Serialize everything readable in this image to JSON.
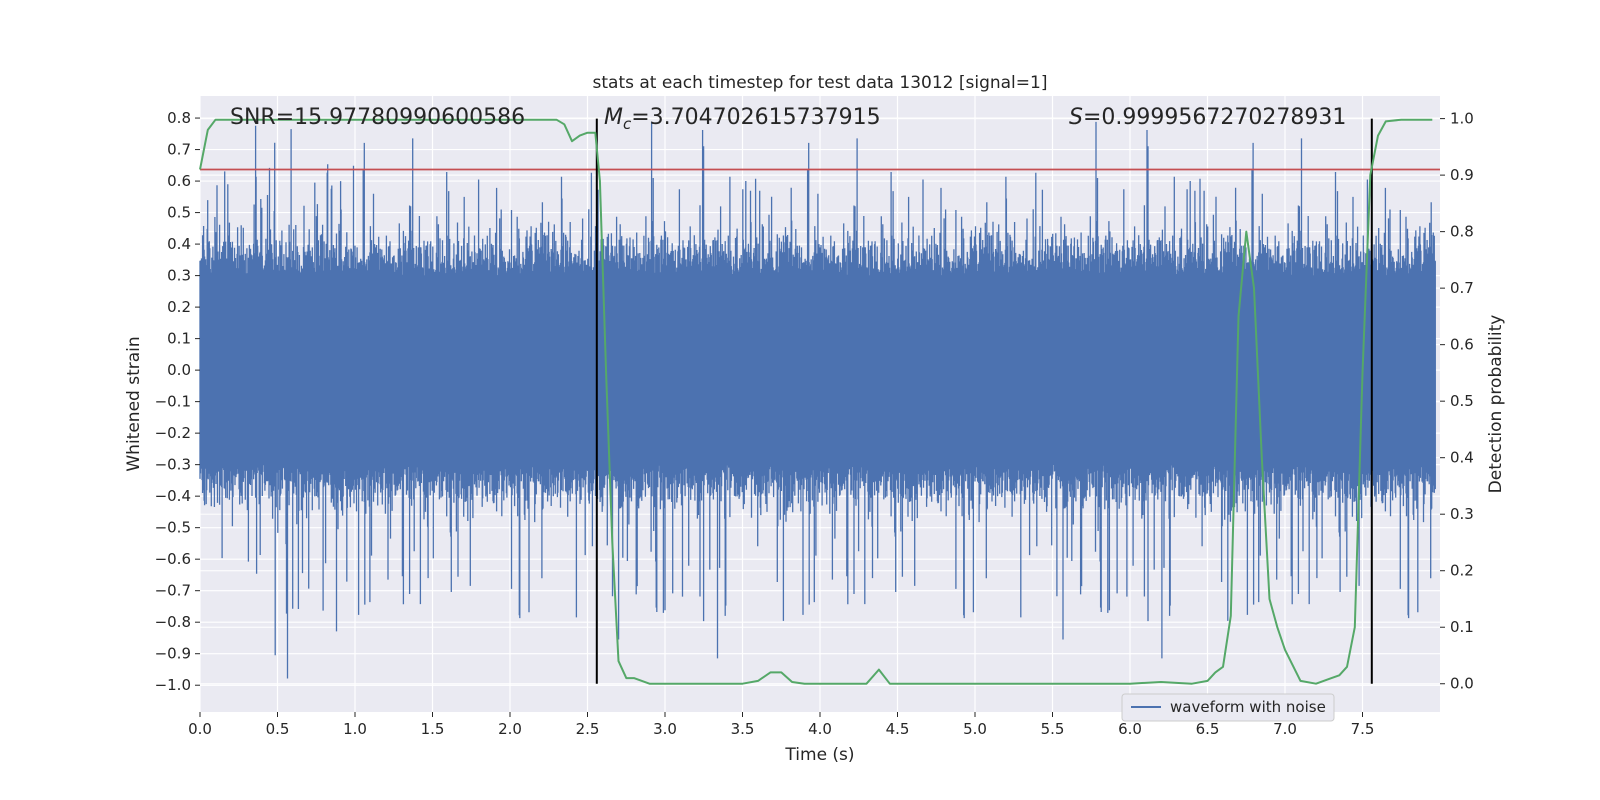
{
  "chart_data": {
    "type": "line",
    "title": "stats at each timestep for test data 13012 [signal=1]",
    "xlabel": "Time (s)",
    "ylabel": "Whitened strain",
    "y2label": "Detection probability",
    "xlim": [
      0.0,
      8.0
    ],
    "ylim": [
      -1.085,
      0.87
    ],
    "y2lim": [
      -0.05,
      1.04
    ],
    "xticks": [
      0.0,
      0.5,
      1.0,
      1.5,
      2.0,
      2.5,
      3.0,
      3.5,
      4.0,
      4.5,
      5.0,
      5.5,
      6.0,
      6.5,
      7.0,
      7.5
    ],
    "xtick_labels": [
      "0.0",
      "0.5",
      "1.0",
      "1.5",
      "2.0",
      "2.5",
      "3.0",
      "3.5",
      "4.0",
      "4.5",
      "5.0",
      "5.5",
      "6.0",
      "6.5",
      "7.0",
      "7.5"
    ],
    "yticks": [
      0.8,
      0.7,
      0.6,
      0.5,
      0.4,
      0.3,
      0.2,
      0.1,
      0.0,
      -0.1,
      -0.2,
      -0.3,
      -0.4,
      -0.5,
      -0.6,
      -0.7,
      -0.8,
      -0.9,
      -1.0
    ],
    "ytick_labels": [
      "0.8",
      "0.7",
      "0.6",
      "0.5",
      "0.4",
      "0.3",
      "0.2",
      "0.1",
      "0.0",
      "−0.1",
      "−0.2",
      "−0.3",
      "−0.4",
      "−0.5",
      "−0.6",
      "−0.7",
      "−0.8",
      "−0.9",
      "−1.0"
    ],
    "y2ticks": [
      1.0,
      0.9,
      0.8,
      0.7,
      0.6,
      0.5,
      0.4,
      0.3,
      0.2,
      0.1,
      0.0
    ],
    "y2tick_labels": [
      "1.0",
      "0.9",
      "0.8",
      "0.7",
      "0.6",
      "0.5",
      "0.4",
      "0.3",
      "0.2",
      "0.1",
      "0.0"
    ],
    "grid": true,
    "series": [
      {
        "name": "waveform with noise",
        "axis": "left",
        "style": "noisy",
        "noise_envelope": {
          "core_amplitude": 0.3,
          "typical_peak": 0.45,
          "max_peak": 0.79,
          "min_trough": -1.0
        }
      },
      {
        "name": "detection probability",
        "axis": "right",
        "x": [
          0.0,
          0.05,
          0.1,
          0.5,
          1.0,
          1.5,
          2.0,
          2.3,
          2.35,
          2.4,
          2.45,
          2.5,
          2.55,
          2.58,
          2.62,
          2.66,
          2.7,
          2.75,
          2.8,
          2.9,
          3.0,
          3.3,
          3.5,
          3.6,
          3.68,
          3.75,
          3.82,
          3.9,
          4.3,
          4.38,
          4.45,
          4.6,
          5.0,
          5.5,
          6.0,
          6.2,
          6.4,
          6.5,
          6.55,
          6.6,
          6.65,
          6.7,
          6.75,
          6.8,
          6.85,
          6.9,
          6.95,
          7.0,
          7.1,
          7.2,
          7.3,
          7.35,
          7.4,
          7.45,
          7.5,
          7.55,
          7.6,
          7.65,
          7.75,
          7.95
        ],
        "values": [
          0.91,
          0.98,
          0.998,
          0.998,
          0.998,
          0.998,
          0.998,
          0.998,
          0.99,
          0.96,
          0.97,
          0.975,
          0.975,
          0.89,
          0.55,
          0.25,
          0.04,
          0.01,
          0.01,
          0.0,
          0.0,
          0.0,
          0.0,
          0.005,
          0.02,
          0.02,
          0.003,
          0.0,
          0.0,
          0.025,
          0.0,
          0.0,
          0.0,
          0.0,
          0.0,
          0.003,
          0.0,
          0.005,
          0.02,
          0.03,
          0.12,
          0.65,
          0.8,
          0.7,
          0.4,
          0.15,
          0.1,
          0.06,
          0.005,
          0.0,
          0.01,
          0.015,
          0.03,
          0.1,
          0.55,
          0.9,
          0.97,
          0.995,
          0.998,
          0.998
        ],
        "color": "#55a868"
      }
    ],
    "hlines": [
      {
        "axis": "right",
        "y": 0.91,
        "color": "#c44e52"
      }
    ],
    "vlines": [
      {
        "x": 2.56,
        "y2_from": 0.0,
        "y2_to": 1.0,
        "color": "#000000"
      },
      {
        "x": 7.56,
        "y2_from": 0.0,
        "y2_to": 1.0,
        "color": "#000000"
      }
    ],
    "annotations": [
      {
        "text": "SNR=15.97780990600586"
      },
      {
        "text": "M",
        "sub": "c",
        "rest": "=3.704702615737915"
      },
      {
        "text": "S",
        "rest": "=0.9999567270278931"
      }
    ],
    "legend": {
      "location": "lower-right",
      "entries": [
        "waveform with noise"
      ]
    },
    "colors": {
      "background": "#eaeaf2",
      "grid": "#ffffff",
      "waveform": "#4c72b0",
      "probability": "#55a868",
      "threshold": "#c44e52",
      "event": "#000000"
    }
  }
}
